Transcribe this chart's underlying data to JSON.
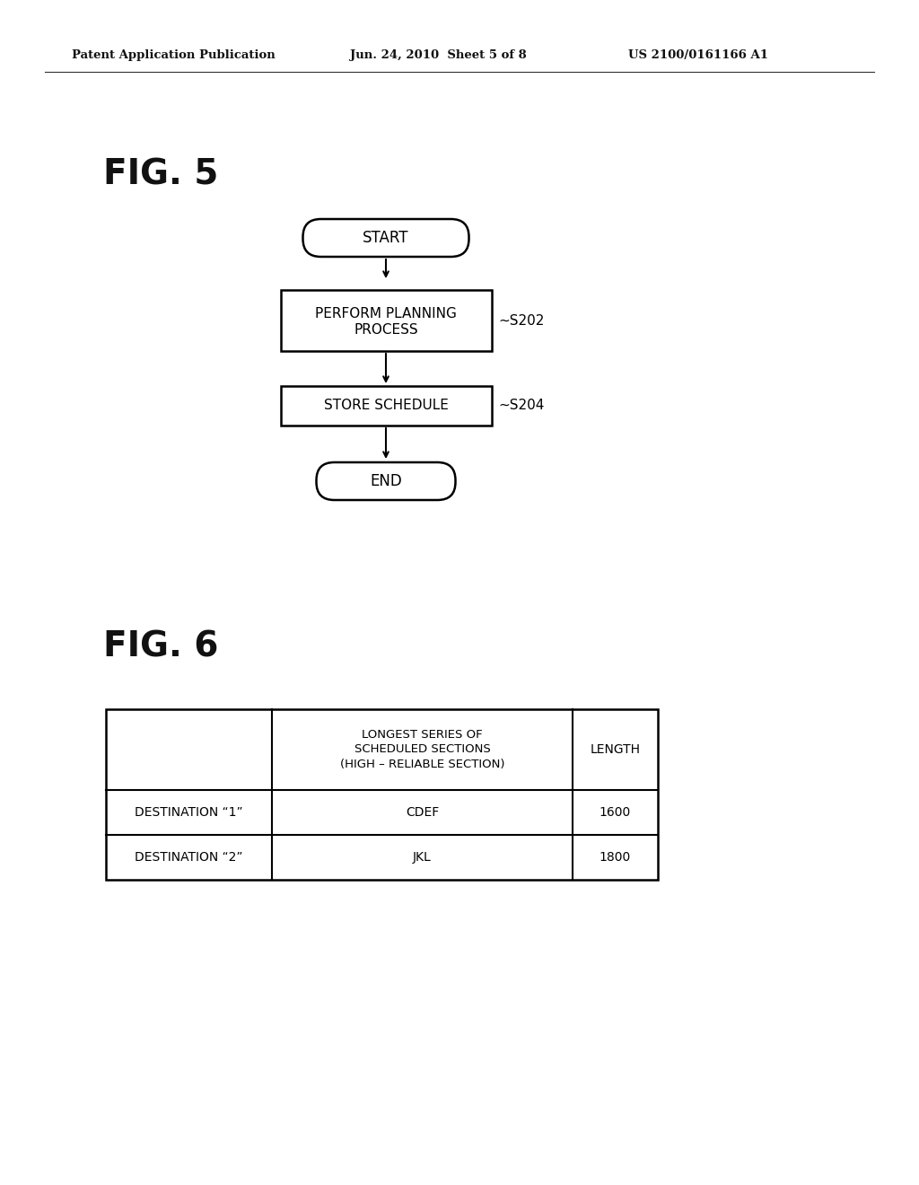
{
  "bg_color": "#ffffff",
  "header_left": "Patent Application Publication",
  "header_mid": "Jun. 24, 2010  Sheet 5 of 8",
  "header_right": "US 2100/0161166 A1",
  "fig5_label": "FIG. 5",
  "fig6_label": "FIG. 6",
  "flowchart": {
    "start_text": "START",
    "step1_line1": "PERFORM PLANNING",
    "step1_line2": "PROCESS",
    "step1_label": "~S202",
    "step2_text": "STORE SCHEDULE",
    "step2_label": "~S204",
    "end_text": "END"
  },
  "table": {
    "col1_header_lines": [
      "LONGEST SERIES OF",
      "SCHEDULED SECTIONS",
      "(HIGH – RELIABLE SECTION)"
    ],
    "col2_header": "LENGTH",
    "rows": [
      [
        "DESTINATION “1”",
        "CDEF",
        "1600"
      ],
      [
        "DESTINATION “2”",
        "JKL",
        "1800"
      ]
    ]
  }
}
